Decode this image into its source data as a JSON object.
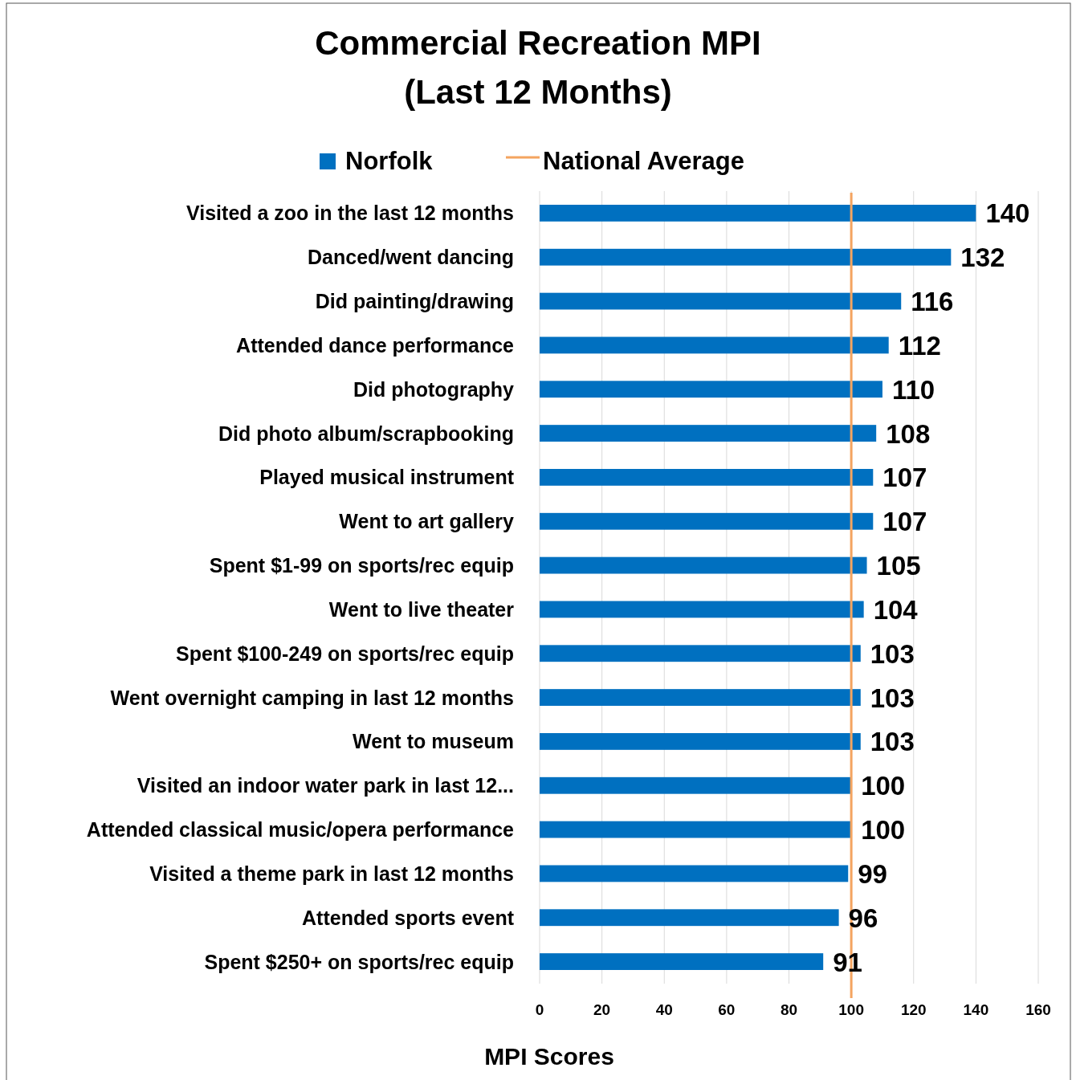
{
  "chart_data": {
    "type": "bar",
    "orientation": "horizontal",
    "title": "Commercial Recreation MPI\n(Last 12 Months)",
    "xlabel": "MPI Scores",
    "categories": [
      "Visited a zoo in the last 12 months",
      "Danced/went dancing",
      "Did painting/drawing",
      "Attended dance performance",
      "Did photography",
      "Did photo album/scrapbooking",
      "Played musical instrument",
      "Went to art gallery",
      "Spent  $1-99 on sports/rec equip",
      "Went to live theater",
      "Spent $100-249 on sports/rec equip",
      "Went overnight camping in last 12 months",
      "Went to museum",
      "Visited an indoor water park in last 12...",
      "Attended classical music/opera performance",
      "Visited a theme park in last 12 months",
      "Attended sports event",
      "Spent  $250+ on sports/rec equip"
    ],
    "series": [
      {
        "name": "Norfolk",
        "color": "#0070c0",
        "values": [
          140,
          132,
          116,
          112,
          110,
          108,
          107,
          107,
          105,
          104,
          103,
          103,
          103,
          100,
          100,
          99,
          96,
          91
        ]
      }
    ],
    "ref_lines": [
      {
        "axis": "x",
        "value": 100,
        "label": "National Average",
        "color": "#f4a460"
      }
    ],
    "xlim": [
      0,
      160
    ],
    "xticks": [
      0,
      20,
      40,
      60,
      80,
      100,
      120,
      140,
      160
    ],
    "grid": "x",
    "legend": "top",
    "data_labels": true
  }
}
